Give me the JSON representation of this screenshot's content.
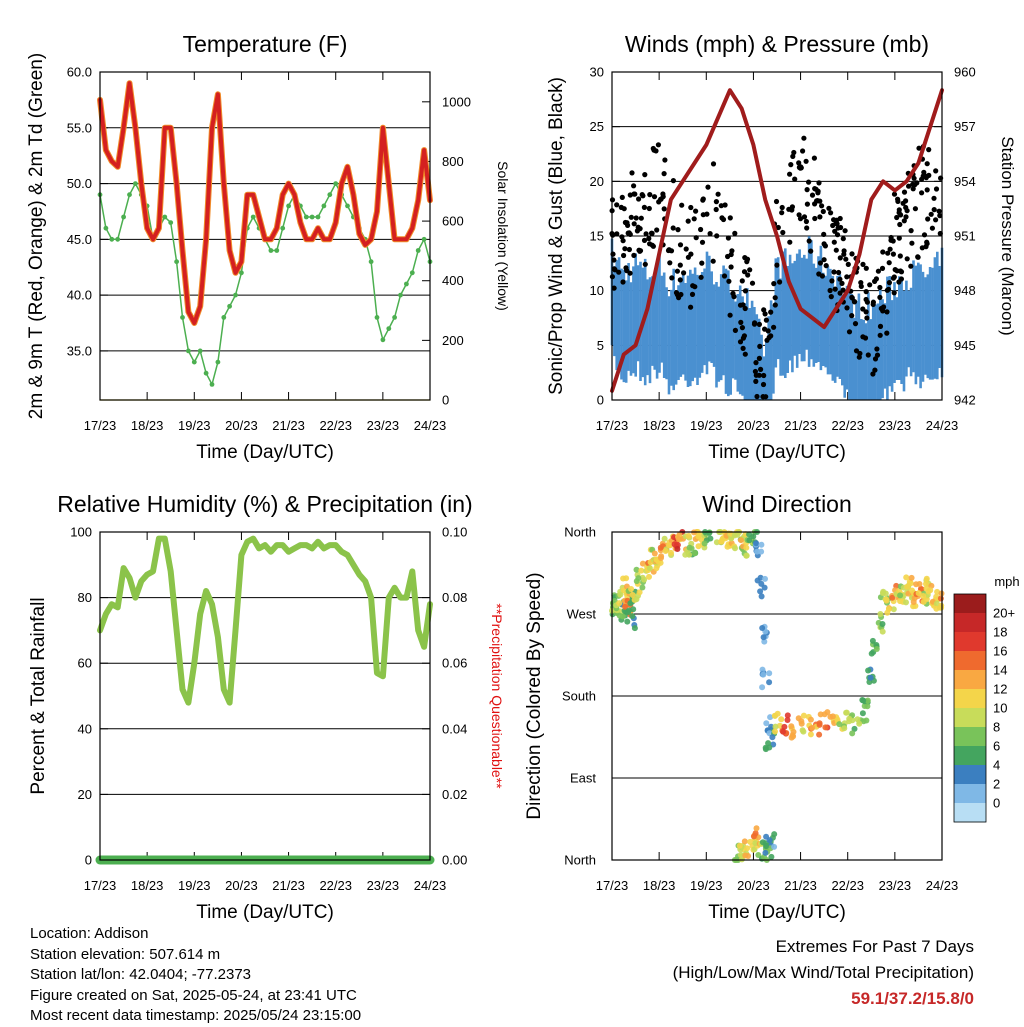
{
  "x_tick_labels": [
    "17/23",
    "18/23",
    "19/23",
    "20/23",
    "21/23",
    "22/23",
    "23/23",
    "24/23"
  ],
  "time_axis_label": "Time (Day/UTC)",
  "chart_data": [
    {
      "type": "line",
      "title": "Temperature (F)",
      "ylabel": "2m & 9m T (Red, Orange) & 2m Td (Green)",
      "y2label": "Solar Insolation (Yellow)",
      "ylim": [
        30.6,
        60.0
      ],
      "y_ticks": [
        "60.0",
        "55.0",
        "50.0",
        "45.0",
        "40.0",
        "35.0"
      ],
      "y2lim": [
        0,
        1100
      ],
      "y2_ticks": [
        "1000",
        "800",
        "600",
        "400",
        "200",
        "0"
      ],
      "x": [
        0,
        0.125,
        0.25,
        0.375,
        0.5,
        0.625,
        0.75,
        0.875,
        1,
        1.125,
        1.25,
        1.375,
        1.5,
        1.625,
        1.75,
        1.875,
        2,
        2.125,
        2.25,
        2.375,
        2.5,
        2.625,
        2.75,
        2.875,
        3,
        3.125,
        3.25,
        3.375,
        3.5,
        3.625,
        3.75,
        3.875,
        4,
        4.125,
        4.25,
        4.375,
        4.5,
        4.625,
        4.75,
        4.875,
        5,
        5.125,
        5.25,
        5.375,
        5.5,
        5.625,
        5.75,
        5.875,
        6,
        6.125,
        6.25,
        6.375,
        6.5,
        6.625,
        6.75,
        6.875,
        7
      ],
      "series": [
        {
          "role": "temperature_2m_9m",
          "color": "#d42020",
          "values": [
            57.5,
            53,
            52,
            51.5,
            55,
            59,
            55,
            50,
            46,
            45,
            46,
            55,
            55,
            50,
            44,
            38.5,
            37.5,
            39,
            45,
            55,
            58,
            50,
            44,
            42,
            43,
            49,
            49,
            47,
            45,
            45,
            46,
            49,
            50,
            49,
            46.5,
            45,
            45,
            46,
            45,
            45,
            46.5,
            50,
            51.5,
            49,
            45.5,
            44.5,
            45,
            47.5,
            55,
            50,
            45,
            45,
            45,
            46,
            48.5,
            53,
            48.5
          ]
        },
        {
          "role": "dewpoint_2m",
          "color": "#4caf50",
          "values": [
            49,
            46,
            45,
            45,
            47,
            49,
            50,
            49,
            48,
            45,
            46,
            47,
            46.5,
            43,
            38,
            35,
            34,
            35,
            33,
            32,
            34,
            38,
            39,
            40,
            42,
            46,
            47,
            46,
            45,
            44,
            44,
            46,
            48,
            49,
            48,
            47,
            47,
            47,
            48,
            49,
            50,
            49,
            48,
            47,
            46,
            45,
            43,
            38,
            36,
            37,
            38,
            40,
            41,
            42,
            44,
            45,
            43
          ]
        },
        {
          "role": "solar_insolation",
          "color": "#f2d330",
          "values": [
            0,
            0,
            0,
            0,
            0,
            0,
            0,
            0,
            0,
            0,
            0,
            0,
            0,
            0,
            0,
            0,
            0,
            0,
            0,
            0,
            0,
            0,
            0,
            0,
            0,
            0,
            0,
            0,
            0,
            0,
            0,
            0,
            0,
            0,
            0,
            0,
            0,
            0,
            0,
            0,
            0,
            0,
            0,
            0,
            0,
            0,
            0,
            0,
            0,
            0,
            0,
            0,
            0,
            0,
            0,
            0,
            0
          ]
        }
      ]
    },
    {
      "type": "line",
      "title": "Winds (mph) & Pressure (mb)",
      "ylabel": "Sonic/Prop Wind & Gust (Blue, Black)",
      "y2label": "Station Pressure (Maroon)",
      "ylim": [
        0,
        30
      ],
      "y_ticks": [
        "30",
        "25",
        "20",
        "15",
        "10",
        "5",
        "0"
      ],
      "y2lim": [
        942,
        960
      ],
      "y2_ticks": [
        "960",
        "957",
        "954",
        "951",
        "948",
        "945",
        "942"
      ],
      "x": [
        0,
        0.25,
        0.5,
        0.75,
        1,
        1.25,
        1.5,
        1.75,
        2,
        2.25,
        2.5,
        2.75,
        3,
        3.25,
        3.5,
        3.75,
        4,
        4.25,
        4.5,
        4.75,
        5,
        5.25,
        5.5,
        5.75,
        6,
        6.25,
        6.5,
        6.75,
        7
      ],
      "series": [
        {
          "role": "pressure",
          "color": "#a01c1c",
          "values": [
            942.5,
            944.5,
            945,
            947,
            950,
            953,
            954,
            955,
            956,
            957.5,
            959,
            958,
            956,
            953,
            951,
            948.5,
            947,
            946.5,
            946,
            947,
            948,
            950,
            953,
            954,
            953.5,
            954,
            955,
            957,
            959
          ]
        },
        {
          "role": "wind",
          "color": "#4a90d0",
          "values": [
            10,
            8,
            9,
            8,
            9,
            7,
            8,
            8,
            9,
            8,
            7,
            7,
            4,
            1,
            9,
            9,
            10,
            10,
            9,
            8,
            6,
            5,
            5,
            6,
            7,
            8,
            8,
            8,
            9
          ]
        },
        {
          "role": "gust",
          "color": "#000000",
          "values": [
            15,
            14,
            18,
            17,
            20,
            16,
            13,
            13,
            18,
            17,
            12,
            10,
            6,
            3,
            15,
            18,
            20,
            18,
            15,
            13,
            10,
            8,
            7,
            9,
            15,
            16,
            18,
            19,
            20
          ]
        }
      ]
    },
    {
      "type": "line",
      "title": "Relative Humidity (%) & Precipitation (in)",
      "ylabel": "Percent & Total Rainfall",
      "y2label": "**Precipitation Questionable**",
      "ylim": [
        0,
        100
      ],
      "y_ticks": [
        "100",
        "80",
        "60",
        "40",
        "20",
        "0"
      ],
      "y2lim": [
        0,
        0.1
      ],
      "y2_ticks": [
        "0.10",
        "0.08",
        "0.06",
        "0.04",
        "0.02",
        "0.00"
      ],
      "x": [
        0,
        0.125,
        0.25,
        0.375,
        0.5,
        0.625,
        0.75,
        0.875,
        1,
        1.125,
        1.25,
        1.375,
        1.5,
        1.625,
        1.75,
        1.875,
        2,
        2.125,
        2.25,
        2.375,
        2.5,
        2.625,
        2.75,
        2.875,
        3,
        3.125,
        3.25,
        3.375,
        3.5,
        3.625,
        3.75,
        3.875,
        4,
        4.125,
        4.25,
        4.375,
        4.5,
        4.625,
        4.75,
        4.875,
        5,
        5.125,
        5.25,
        5.375,
        5.5,
        5.625,
        5.75,
        5.875,
        6,
        6.125,
        6.25,
        6.375,
        6.5,
        6.625,
        6.75,
        6.875,
        7
      ],
      "series": [
        {
          "role": "relative_humidity",
          "color": "#8bc34a",
          "values": [
            70,
            75,
            78,
            77,
            89,
            86,
            80,
            85,
            87,
            88,
            98,
            98,
            88,
            70,
            52,
            48,
            60,
            75,
            82,
            78,
            68,
            52,
            48,
            70,
            93,
            97,
            98,
            95,
            96,
            94,
            96,
            96,
            94,
            95,
            96,
            96,
            95,
            97,
            95,
            96,
            96,
            94,
            93,
            90,
            87,
            85,
            80,
            57,
            56,
            80,
            83,
            80,
            80,
            88,
            70,
            65,
            78
          ]
        },
        {
          "role": "precipitation",
          "color": "#4caf50",
          "values": [
            0,
            0,
            0,
            0,
            0,
            0,
            0,
            0,
            0,
            0,
            0,
            0,
            0,
            0,
            0,
            0,
            0,
            0,
            0,
            0,
            0,
            0,
            0,
            0,
            0,
            0,
            0,
            0,
            0,
            0,
            0,
            0,
            0,
            0,
            0,
            0,
            0,
            0,
            0,
            0,
            0,
            0,
            0,
            0,
            0,
            0,
            0,
            0,
            0,
            0,
            0,
            0,
            0,
            0,
            0,
            0,
            0
          ]
        }
      ]
    },
    {
      "type": "scatter",
      "title": "Wind Direction",
      "ylabel": "Direction (Colored By Speed)",
      "y_ticks": [
        "North",
        "West",
        "South",
        "East",
        "North"
      ],
      "ylim": [
        0,
        360
      ],
      "colorbar": {
        "title": "mph",
        "labels": [
          "20+",
          "18",
          "16",
          "14",
          "12",
          "10",
          "8",
          "6",
          "4",
          "2",
          "0"
        ],
        "colors": [
          "#9b1c1c",
          "#c62828",
          "#e0392d",
          "#ef6a2e",
          "#f9a842",
          "#f4d54a",
          "#c8dc5a",
          "#79c35a",
          "#44a55f",
          "#3b7fc0",
          "#7fb8e6",
          "#b8def4"
        ]
      },
      "points": [
        [
          0.05,
          280,
          5
        ],
        [
          0.1,
          275,
          7
        ],
        [
          0.15,
          285,
          6
        ],
        [
          0.2,
          270,
          4
        ],
        [
          0.25,
          290,
          8
        ],
        [
          0.3,
          300,
          10
        ],
        [
          0.35,
          278,
          12
        ],
        [
          0.4,
          265,
          3
        ],
        [
          0.45,
          285,
          5
        ],
        [
          0.5,
          292,
          9
        ],
        [
          0.6,
          310,
          7
        ],
        [
          0.7,
          315,
          10
        ],
        [
          0.8,
          320,
          12
        ],
        [
          0.9,
          330,
          8
        ],
        [
          1.0,
          335,
          11
        ],
        [
          1.1,
          340,
          14
        ],
        [
          1.2,
          345,
          9
        ],
        [
          1.3,
          350,
          12
        ],
        [
          1.4,
          352,
          16
        ],
        [
          1.5,
          348,
          10
        ],
        [
          1.6,
          345,
          8
        ],
        [
          1.7,
          340,
          6
        ],
        [
          1.8,
          355,
          11
        ],
        [
          1.9,
          350,
          9
        ],
        [
          2.0,
          355,
          5
        ],
        [
          2.3,
          358,
          7
        ],
        [
          2.4,
          350,
          9
        ],
        [
          2.5,
          345,
          11
        ],
        [
          2.6,
          355,
          8
        ],
        [
          2.7,
          350,
          6
        ],
        [
          2.8,
          352,
          10
        ],
        [
          2.9,
          345,
          7
        ],
        [
          3.0,
          355,
          4
        ],
        [
          3.1,
          340,
          1
        ],
        [
          3.15,
          300,
          1
        ],
        [
          3.2,
          250,
          0
        ],
        [
          3.25,
          200,
          1
        ],
        [
          3.3,
          150,
          2
        ],
        [
          3.35,
          130,
          3
        ],
        [
          3.5,
          150,
          9
        ],
        [
          3.7,
          148,
          15
        ],
        [
          3.9,
          145,
          12
        ],
        [
          4.1,
          150,
          10
        ],
        [
          4.3,
          148,
          12
        ],
        [
          4.5,
          152,
          14
        ],
        [
          4.7,
          150,
          11
        ],
        [
          4.9,
          152,
          8
        ],
        [
          5.1,
          148,
          6
        ],
        [
          5.3,
          160,
          7
        ],
        [
          5.4,
          170,
          5
        ],
        [
          5.5,
          200,
          4
        ],
        [
          5.6,
          230,
          5
        ],
        [
          5.7,
          260,
          6
        ],
        [
          5.8,
          290,
          8
        ],
        [
          5.9,
          280,
          10
        ],
        [
          6.0,
          295,
          12
        ],
        [
          6.1,
          285,
          9
        ],
        [
          6.2,
          290,
          7
        ],
        [
          6.3,
          300,
          11
        ],
        [
          6.4,
          285,
          10
        ],
        [
          6.5,
          295,
          12
        ],
        [
          6.6,
          285,
          8
        ],
        [
          6.7,
          300,
          9
        ],
        [
          6.8,
          290,
          11
        ],
        [
          6.9,
          285,
          10
        ],
        [
          7.0,
          290,
          12
        ],
        [
          2.7,
          5,
          7
        ],
        [
          2.8,
          10,
          9
        ],
        [
          2.9,
          15,
          11
        ],
        [
          3.0,
          20,
          9
        ],
        [
          3.1,
          25,
          12
        ],
        [
          3.2,
          8,
          6
        ],
        [
          3.3,
          12,
          4
        ],
        [
          3.35,
          18,
          2
        ]
      ]
    }
  ],
  "station_info": [
    "Location: Addison",
    "Station elevation: 507.614 m",
    "Station lat/lon: 42.0404; -77.2373",
    "Figure created on Sat, 2025-05-24, at 23:41 UTC",
    "Most recent data timestamp: 2025/05/24 23:15:00"
  ],
  "extremes": {
    "title": "Extremes For Past 7 Days",
    "subtitle": "(High/Low/Max Wind/Total Precipitation)",
    "value": "59.1/37.2/15.8/0"
  }
}
